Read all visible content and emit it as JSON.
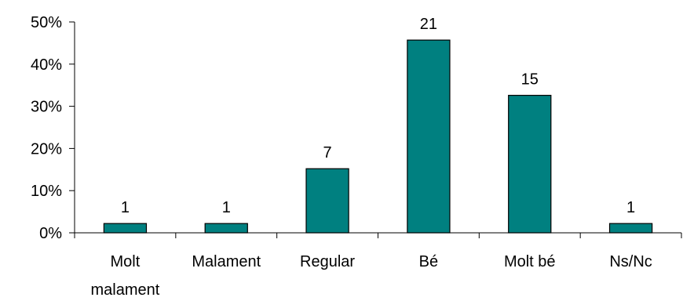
{
  "chart_data": {
    "type": "bar",
    "categories": [
      [
        "Molt",
        "malament"
      ],
      [
        "Malament"
      ],
      [
        "Regular"
      ],
      [
        "Bé"
      ],
      [
        "Molt bé"
      ],
      [
        "Ns/Nc"
      ]
    ],
    "values": [
      2.2,
      2.2,
      15.2,
      45.7,
      32.6,
      2.2
    ],
    "data_labels": [
      "1",
      "1",
      "7",
      "21",
      "15",
      "1"
    ],
    "y_ticks": [
      "0%",
      "10%",
      "20%",
      "30%",
      "40%",
      "50%"
    ],
    "ylim": [
      0,
      50
    ],
    "grid": false,
    "legend": "none",
    "bar_color": "#008080",
    "bar_edge_color": "#000000"
  }
}
